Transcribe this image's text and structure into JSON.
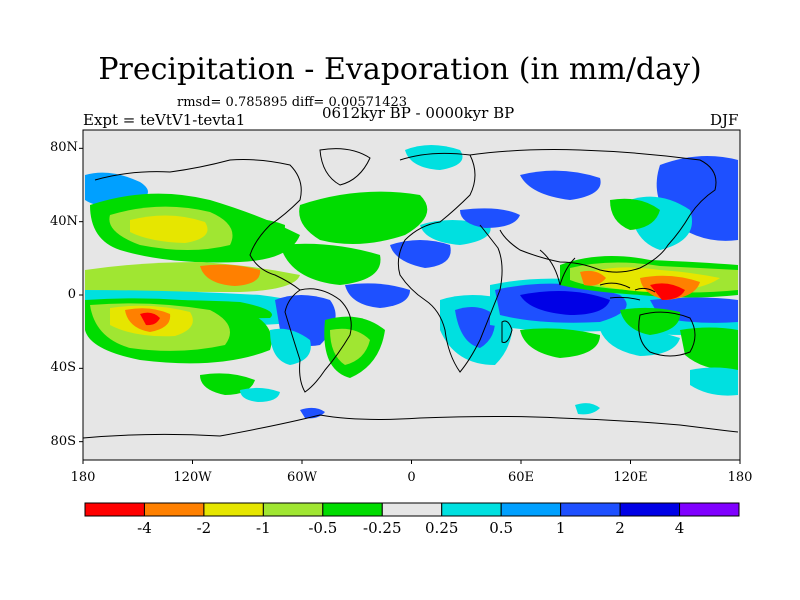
{
  "title": "Precipitation - Evaporation (in mm/day)",
  "stats_line": "rmsd= 0.785895 diff= 0.00571423",
  "experiment": "Expt = teVtV1-tevta1",
  "period": "0612kyr BP - 0000kyr BP",
  "season": "DJF",
  "map": {
    "lat_labels": [
      "80N",
      "40N",
      "0",
      "40S",
      "80S"
    ],
    "lon_labels": [
      "180",
      "120W",
      "60W",
      "0",
      "60E",
      "120E",
      "180"
    ],
    "missing_color": "#e6e6e6"
  },
  "colorbar": {
    "colors": [
      "#ff0000",
      "#ff8000",
      "#e6e600",
      "#a0e632",
      "#00dc00",
      "#e6e6e6",
      "#00e0e0",
      "#00a0ff",
      "#1e50ff",
      "#0000e6",
      "#8000ff"
    ],
    "labels": [
      "-4",
      "-2",
      "-1",
      "-0.5",
      "-0.25",
      "0.25",
      "0.5",
      "1",
      "2",
      "4"
    ]
  }
}
